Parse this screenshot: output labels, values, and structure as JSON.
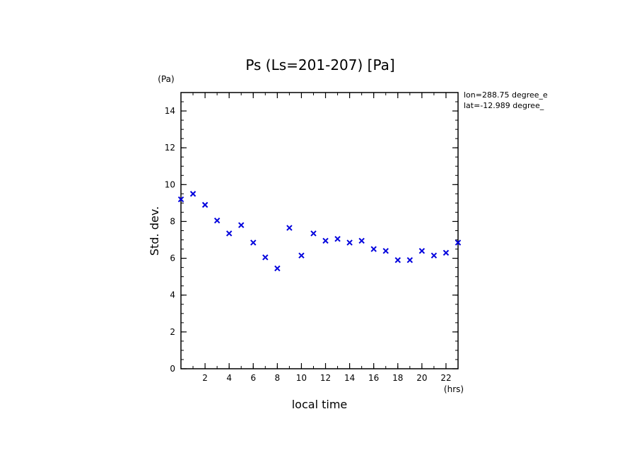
{
  "chart_data": {
    "type": "scatter",
    "title": "Ps (Ls=201-207) [Pa]",
    "xlabel": "local time",
    "ylabel": "Std. dev.",
    "x_unit": "(hrs)",
    "y_unit": "(Pa)",
    "xlim": [
      0.0,
      23.0
    ],
    "ylim": [
      0,
      15
    ],
    "x_ticks": [
      2,
      4,
      6,
      8,
      10,
      12,
      14,
      16,
      18,
      20,
      22
    ],
    "y_ticks": [
      0,
      2,
      4,
      6,
      8,
      10,
      12,
      14
    ],
    "marker": "x",
    "marker_color": "#0000dd",
    "annotations": [
      "lon=288.75 degree_e",
      "lat=-12.989 degree_"
    ],
    "grid": false,
    "series": [
      {
        "x": [
          0.0,
          1.0,
          2.0,
          3.0,
          4.0,
          5.0,
          6.0,
          7.0,
          8.0,
          9.0,
          10.0,
          11.0,
          12.0,
          13.0,
          14.0,
          15.0,
          16.0,
          17.0,
          18.0,
          19.0,
          20.0,
          21.0,
          22.0,
          23.0
        ],
        "y": [
          9.2,
          9.5,
          8.9,
          8.05,
          7.35,
          7.8,
          6.85,
          6.05,
          5.45,
          7.65,
          6.15,
          7.35,
          6.95,
          7.05,
          6.85,
          6.95,
          6.5,
          6.4,
          5.9,
          5.9,
          6.4,
          6.15,
          6.3,
          6.85
        ]
      }
    ]
  }
}
